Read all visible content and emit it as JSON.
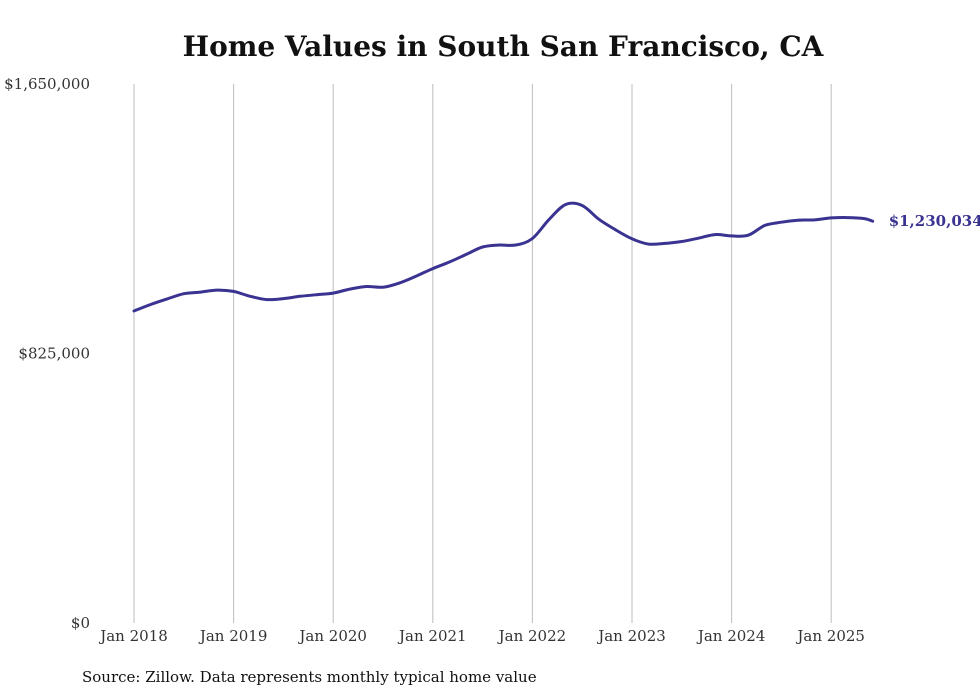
{
  "chart_data": {
    "type": "line",
    "title": "Home Values in South San Francisco, CA",
    "xlabel": "",
    "ylabel": "",
    "ylim": [
      0,
      1650000
    ],
    "yticks": [
      {
        "value": 0,
        "label": "$0"
      },
      {
        "value": 825000,
        "label": "$825,000"
      },
      {
        "value": 1650000,
        "label": "$1,650,000"
      }
    ],
    "xticks": [
      {
        "value": "2018-01",
        "label": "Jan 2018"
      },
      {
        "value": "2019-01",
        "label": "Jan 2019"
      },
      {
        "value": "2020-01",
        "label": "Jan 2020"
      },
      {
        "value": "2021-01",
        "label": "Jan 2021"
      },
      {
        "value": "2022-01",
        "label": "Jan 2022"
      },
      {
        "value": "2023-01",
        "label": "Jan 2023"
      },
      {
        "value": "2024-01",
        "label": "Jan 2024"
      },
      {
        "value": "2025-01",
        "label": "Jan 2025"
      }
    ],
    "x_grid": true,
    "series": [
      {
        "color": "#3a3391",
        "end_label": "$1,230,034",
        "points": [
          [
            "2018-01",
            955000
          ],
          [
            "2018-03",
            975000
          ],
          [
            "2018-05",
            992000
          ],
          [
            "2018-07",
            1008000
          ],
          [
            "2018-09",
            1013000
          ],
          [
            "2018-11",
            1019000
          ],
          [
            "2019-01",
            1015000
          ],
          [
            "2019-03",
            1000000
          ],
          [
            "2019-05",
            990000
          ],
          [
            "2019-07",
            993000
          ],
          [
            "2019-09",
            1000000
          ],
          [
            "2019-11",
            1005000
          ],
          [
            "2020-01",
            1010000
          ],
          [
            "2020-03",
            1022000
          ],
          [
            "2020-05",
            1030000
          ],
          [
            "2020-07",
            1028000
          ],
          [
            "2020-09",
            1041000
          ],
          [
            "2020-11",
            1062000
          ],
          [
            "2021-01",
            1085000
          ],
          [
            "2021-03",
            1105000
          ],
          [
            "2021-05",
            1128000
          ],
          [
            "2021-07",
            1151000
          ],
          [
            "2021-09",
            1157000
          ],
          [
            "2021-11",
            1157000
          ],
          [
            "2022-01",
            1177000
          ],
          [
            "2022-03",
            1235000
          ],
          [
            "2022-05",
            1281000
          ],
          [
            "2022-07",
            1278000
          ],
          [
            "2022-09",
            1236000
          ],
          [
            "2022-11",
            1204000
          ],
          [
            "2023-01",
            1176000
          ],
          [
            "2023-03",
            1160000
          ],
          [
            "2023-05",
            1162000
          ],
          [
            "2023-07",
            1168000
          ],
          [
            "2023-09",
            1178000
          ],
          [
            "2023-11",
            1189000
          ],
          [
            "2024-01",
            1185000
          ],
          [
            "2024-03",
            1187000
          ],
          [
            "2024-05",
            1217000
          ],
          [
            "2024-07",
            1227000
          ],
          [
            "2024-09",
            1233000
          ],
          [
            "2024-11",
            1234000
          ],
          [
            "2025-01",
            1240000
          ],
          [
            "2025-03",
            1241000
          ],
          [
            "2025-05",
            1238000
          ],
          [
            "2025-06",
            1230034
          ]
        ]
      }
    ]
  },
  "footer": {
    "source": "Source: Zillow. Data represents monthly typical home value"
  }
}
